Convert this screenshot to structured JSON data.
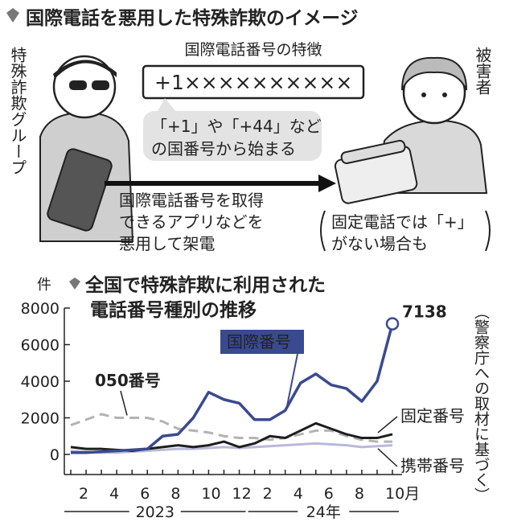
{
  "header": {
    "title": "国際電話を悪用した特殊詐欺のイメージ"
  },
  "illustration": {
    "group_label": "特殊詐欺グループ",
    "victim_label": "被害者",
    "feature_title": "国際電話番号の特徴",
    "number_example": "+1××××××××××",
    "bubble_lines": [
      "「+1」や「+44」など",
      "の国番号から始まる"
    ],
    "caption_lines": [
      "国際電話番号を取得",
      "できるアプリなどを",
      "悪用して架電"
    ],
    "note_lines": [
      "固定電話では「+」",
      "がない場合も"
    ]
  },
  "chart_data": {
    "type": "line",
    "title": [
      "全国で特殊詐欺に利用された",
      "電話番号種別の推移"
    ],
    "y_unit": "件",
    "source": "（警察庁への取材に基づく）",
    "categories": [
      null,
      "2",
      null,
      "4",
      null,
      "6",
      null,
      "8",
      null,
      "10",
      null,
      "12",
      null,
      "2",
      null,
      "4",
      null,
      "6",
      null,
      "8",
      null,
      "10月"
    ],
    "years": [
      "2023",
      "24年"
    ],
    "ylim": [
      0,
      8000
    ],
    "yticks": [
      0,
      2000,
      4000,
      6000,
      8000
    ],
    "series": [
      {
        "name": "国際番号",
        "color": "#3a4a90",
        "values": [
          100,
          100,
          150,
          200,
          250,
          300,
          1000,
          1100,
          2000,
          3400,
          3000,
          2800,
          1900,
          1900,
          2400,
          3900,
          4400,
          3800,
          3600,
          2900,
          4000,
          7138
        ]
      },
      {
        "name": "050番号",
        "color": "#b3b3b3",
        "dashed": true,
        "values": [
          1600,
          1900,
          2200,
          2000,
          2000,
          2000,
          1800,
          1400,
          1300,
          1200,
          1000,
          900,
          900,
          800,
          900,
          1100,
          1300,
          1300,
          1000,
          800,
          700,
          700
        ]
      },
      {
        "name": "固定番号",
        "color": "#1e1e1e",
        "values": [
          400,
          300,
          300,
          250,
          200,
          300,
          400,
          500,
          400,
          500,
          700,
          400,
          600,
          1000,
          900,
          1300,
          1700,
          1400,
          1100,
          900,
          900,
          1100
        ]
      },
      {
        "name": "携帯番号",
        "color": "#b9b9d9",
        "values": [
          200,
          150,
          100,
          100,
          150,
          200,
          250,
          300,
          300,
          350,
          400,
          350,
          400,
          450,
          500,
          550,
          600,
          550,
          500,
          400,
          450,
          500
        ]
      }
    ]
  }
}
